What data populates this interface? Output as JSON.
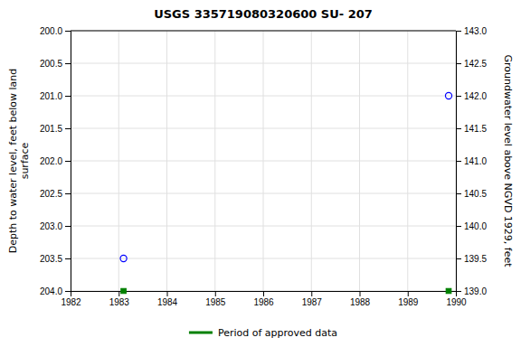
{
  "chart_data": {
    "type": "scatter",
    "title": "USGS 335719080320600 SU- 207",
    "ylabel": "Depth to water level, feet below land\nsurface",
    "y2label": "Groundwater level above NGVD 1929, feet",
    "xlim": [
      1982,
      1990
    ],
    "xticks": [
      1982,
      1983,
      1984,
      1985,
      1986,
      1987,
      1988,
      1989,
      1990
    ],
    "ylim": [
      204.0,
      200.0
    ],
    "yticks": [
      {
        "value": 200.0,
        "label": "200.0"
      },
      200.5,
      {
        "value": 201.0,
        "label": "201.0"
      },
      201.5,
      {
        "value": 202.0,
        "label": "202.0"
      },
      202.5,
      {
        "value": 203.0,
        "label": "203.0"
      },
      203.5,
      {
        "value": 204.0,
        "label": "204.0"
      }
    ],
    "y2lim": [
      139.0,
      143.0
    ],
    "y2ticks": [
      {
        "value": 143.0,
        "label": "143.0"
      },
      142.5,
      {
        "value": 142.0,
        "label": "142.0"
      },
      141.5,
      {
        "value": 141.0,
        "label": "141.0"
      },
      140.5,
      {
        "value": 140.0,
        "label": "140.0"
      },
      139.5,
      {
        "value": 139.0,
        "label": "139.0"
      }
    ],
    "grid": true,
    "legend": "bottom",
    "x": [
      1983.1,
      1989.85
    ],
    "series": [
      {
        "color": "blue",
        "marker": "circle-open",
        "values": [
          203.5,
          201.0
        ]
      },
      {
        "name": "Period of approved data",
        "color": "#008000",
        "marker": "square",
        "values": [
          204.0,
          204.0
        ]
      }
    ]
  }
}
